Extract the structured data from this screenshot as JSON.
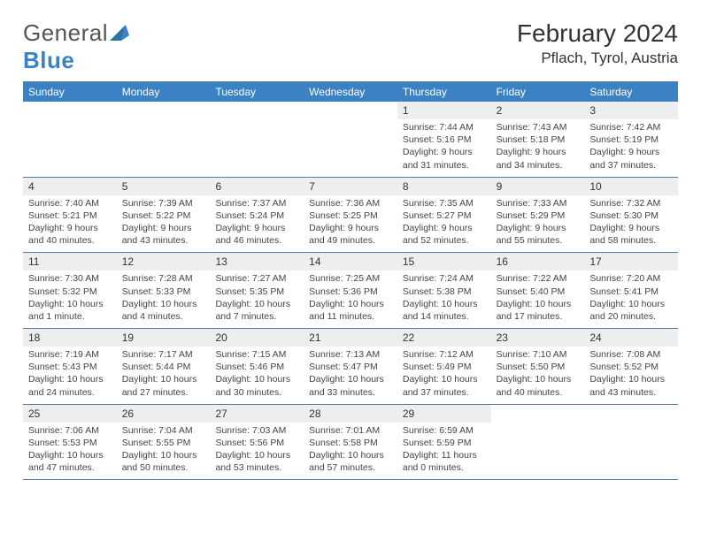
{
  "colors": {
    "accent": "#3b82c4",
    "border": "#5a7a9a",
    "date_bg": "#eceeef",
    "text": "#222222",
    "muted": "#444444",
    "white": "#ffffff"
  },
  "logo": {
    "text_a": "General",
    "text_b": "Blue"
  },
  "header": {
    "title": "February 2024",
    "subtitle": "Pflach, Tyrol, Austria"
  },
  "weekdays": [
    "Sunday",
    "Monday",
    "Tuesday",
    "Wednesday",
    "Thursday",
    "Friday",
    "Saturday"
  ],
  "weeks": [
    [
      {
        "empty": true
      },
      {
        "empty": true
      },
      {
        "empty": true
      },
      {
        "empty": true
      },
      {
        "date": "1",
        "sunrise": "Sunrise: 7:44 AM",
        "sunset": "Sunset: 5:16 PM",
        "daylight": "Daylight: 9 hours and 31 minutes."
      },
      {
        "date": "2",
        "sunrise": "Sunrise: 7:43 AM",
        "sunset": "Sunset: 5:18 PM",
        "daylight": "Daylight: 9 hours and 34 minutes."
      },
      {
        "date": "3",
        "sunrise": "Sunrise: 7:42 AM",
        "sunset": "Sunset: 5:19 PM",
        "daylight": "Daylight: 9 hours and 37 minutes."
      }
    ],
    [
      {
        "date": "4",
        "sunrise": "Sunrise: 7:40 AM",
        "sunset": "Sunset: 5:21 PM",
        "daylight": "Daylight: 9 hours and 40 minutes."
      },
      {
        "date": "5",
        "sunrise": "Sunrise: 7:39 AM",
        "sunset": "Sunset: 5:22 PM",
        "daylight": "Daylight: 9 hours and 43 minutes."
      },
      {
        "date": "6",
        "sunrise": "Sunrise: 7:37 AM",
        "sunset": "Sunset: 5:24 PM",
        "daylight": "Daylight: 9 hours and 46 minutes."
      },
      {
        "date": "7",
        "sunrise": "Sunrise: 7:36 AM",
        "sunset": "Sunset: 5:25 PM",
        "daylight": "Daylight: 9 hours and 49 minutes."
      },
      {
        "date": "8",
        "sunrise": "Sunrise: 7:35 AM",
        "sunset": "Sunset: 5:27 PM",
        "daylight": "Daylight: 9 hours and 52 minutes."
      },
      {
        "date": "9",
        "sunrise": "Sunrise: 7:33 AM",
        "sunset": "Sunset: 5:29 PM",
        "daylight": "Daylight: 9 hours and 55 minutes."
      },
      {
        "date": "10",
        "sunrise": "Sunrise: 7:32 AM",
        "sunset": "Sunset: 5:30 PM",
        "daylight": "Daylight: 9 hours and 58 minutes."
      }
    ],
    [
      {
        "date": "11",
        "sunrise": "Sunrise: 7:30 AM",
        "sunset": "Sunset: 5:32 PM",
        "daylight": "Daylight: 10 hours and 1 minute."
      },
      {
        "date": "12",
        "sunrise": "Sunrise: 7:28 AM",
        "sunset": "Sunset: 5:33 PM",
        "daylight": "Daylight: 10 hours and 4 minutes."
      },
      {
        "date": "13",
        "sunrise": "Sunrise: 7:27 AM",
        "sunset": "Sunset: 5:35 PM",
        "daylight": "Daylight: 10 hours and 7 minutes."
      },
      {
        "date": "14",
        "sunrise": "Sunrise: 7:25 AM",
        "sunset": "Sunset: 5:36 PM",
        "daylight": "Daylight: 10 hours and 11 minutes."
      },
      {
        "date": "15",
        "sunrise": "Sunrise: 7:24 AM",
        "sunset": "Sunset: 5:38 PM",
        "daylight": "Daylight: 10 hours and 14 minutes."
      },
      {
        "date": "16",
        "sunrise": "Sunrise: 7:22 AM",
        "sunset": "Sunset: 5:40 PM",
        "daylight": "Daylight: 10 hours and 17 minutes."
      },
      {
        "date": "17",
        "sunrise": "Sunrise: 7:20 AM",
        "sunset": "Sunset: 5:41 PM",
        "daylight": "Daylight: 10 hours and 20 minutes."
      }
    ],
    [
      {
        "date": "18",
        "sunrise": "Sunrise: 7:19 AM",
        "sunset": "Sunset: 5:43 PM",
        "daylight": "Daylight: 10 hours and 24 minutes."
      },
      {
        "date": "19",
        "sunrise": "Sunrise: 7:17 AM",
        "sunset": "Sunset: 5:44 PM",
        "daylight": "Daylight: 10 hours and 27 minutes."
      },
      {
        "date": "20",
        "sunrise": "Sunrise: 7:15 AM",
        "sunset": "Sunset: 5:46 PM",
        "daylight": "Daylight: 10 hours and 30 minutes."
      },
      {
        "date": "21",
        "sunrise": "Sunrise: 7:13 AM",
        "sunset": "Sunset: 5:47 PM",
        "daylight": "Daylight: 10 hours and 33 minutes."
      },
      {
        "date": "22",
        "sunrise": "Sunrise: 7:12 AM",
        "sunset": "Sunset: 5:49 PM",
        "daylight": "Daylight: 10 hours and 37 minutes."
      },
      {
        "date": "23",
        "sunrise": "Sunrise: 7:10 AM",
        "sunset": "Sunset: 5:50 PM",
        "daylight": "Daylight: 10 hours and 40 minutes."
      },
      {
        "date": "24",
        "sunrise": "Sunrise: 7:08 AM",
        "sunset": "Sunset: 5:52 PM",
        "daylight": "Daylight: 10 hours and 43 minutes."
      }
    ],
    [
      {
        "date": "25",
        "sunrise": "Sunrise: 7:06 AM",
        "sunset": "Sunset: 5:53 PM",
        "daylight": "Daylight: 10 hours and 47 minutes."
      },
      {
        "date": "26",
        "sunrise": "Sunrise: 7:04 AM",
        "sunset": "Sunset: 5:55 PM",
        "daylight": "Daylight: 10 hours and 50 minutes."
      },
      {
        "date": "27",
        "sunrise": "Sunrise: 7:03 AM",
        "sunset": "Sunset: 5:56 PM",
        "daylight": "Daylight: 10 hours and 53 minutes."
      },
      {
        "date": "28",
        "sunrise": "Sunrise: 7:01 AM",
        "sunset": "Sunset: 5:58 PM",
        "daylight": "Daylight: 10 hours and 57 minutes."
      },
      {
        "date": "29",
        "sunrise": "Sunrise: 6:59 AM",
        "sunset": "Sunset: 5:59 PM",
        "daylight": "Daylight: 11 hours and 0 minutes."
      },
      {
        "empty": true
      },
      {
        "empty": true
      }
    ]
  ]
}
